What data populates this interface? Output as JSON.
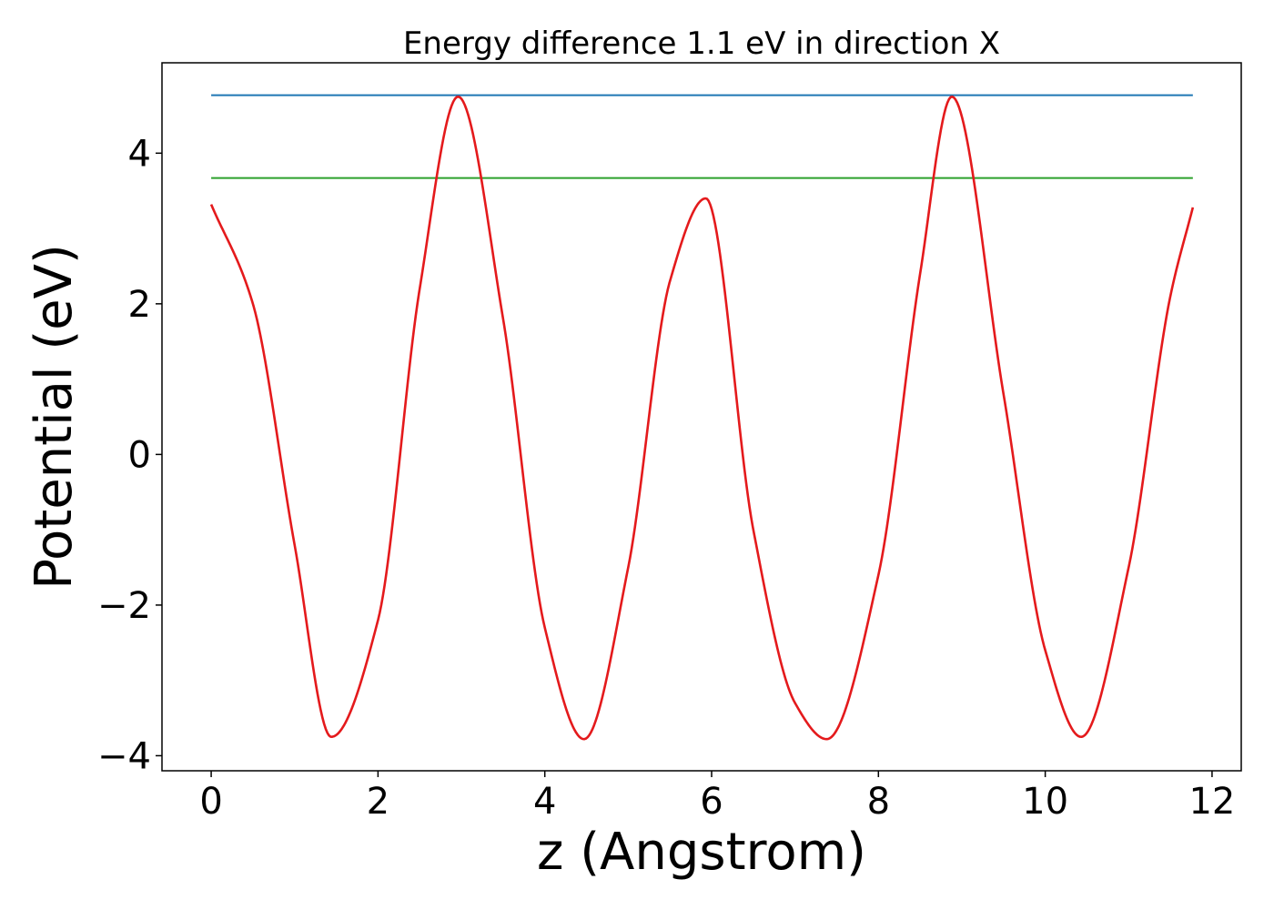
{
  "chart_data": {
    "type": "line",
    "title": "Energy difference 1.1 eV in direction X",
    "xlabel": "z (Angstrom)",
    "ylabel": "Potential (eV)",
    "xlim": [
      -0.59,
      12.35
    ],
    "ylim": [
      -4.2,
      5.2
    ],
    "xticks": [
      0,
      2,
      4,
      6,
      8,
      10,
      12
    ],
    "xtick_labels": [
      "0",
      "2",
      "4",
      "6",
      "8",
      "10",
      "12"
    ],
    "yticks": [
      -4,
      -2,
      0,
      2,
      4
    ],
    "ytick_labels": [
      "−4",
      "−2",
      "0",
      "2",
      "4"
    ],
    "grid": false,
    "legend": "none",
    "series": [
      {
        "color": "#1f77b4",
        "style": "constant",
        "x": [
          0,
          11.77
        ],
        "y": [
          4.77,
          4.77
        ]
      },
      {
        "color": "#2ca02c",
        "style": "constant",
        "x": [
          0,
          11.77
        ],
        "y": [
          3.67,
          3.67
        ]
      },
      {
        "color": "#e41a1c",
        "style": "curve",
        "x": [
          0,
          0.5,
          1.0,
          1.44,
          2.0,
          2.5,
          2.96,
          3.5,
          4.0,
          4.47,
          5.0,
          5.5,
          5.93,
          6.5,
          7.0,
          7.38,
          8.0,
          8.5,
          8.88,
          9.5,
          10.0,
          10.43,
          11.0,
          11.5,
          11.77
        ],
        "y": [
          3.32,
          2.0,
          -1.2,
          -3.75,
          -2.2,
          2.2,
          4.75,
          1.8,
          -2.3,
          -3.78,
          -1.5,
          2.3,
          3.4,
          -1.0,
          -3.3,
          -3.78,
          -1.6,
          2.4,
          4.75,
          0.8,
          -2.6,
          -3.75,
          -1.5,
          2.1,
          3.28
        ]
      }
    ]
  }
}
